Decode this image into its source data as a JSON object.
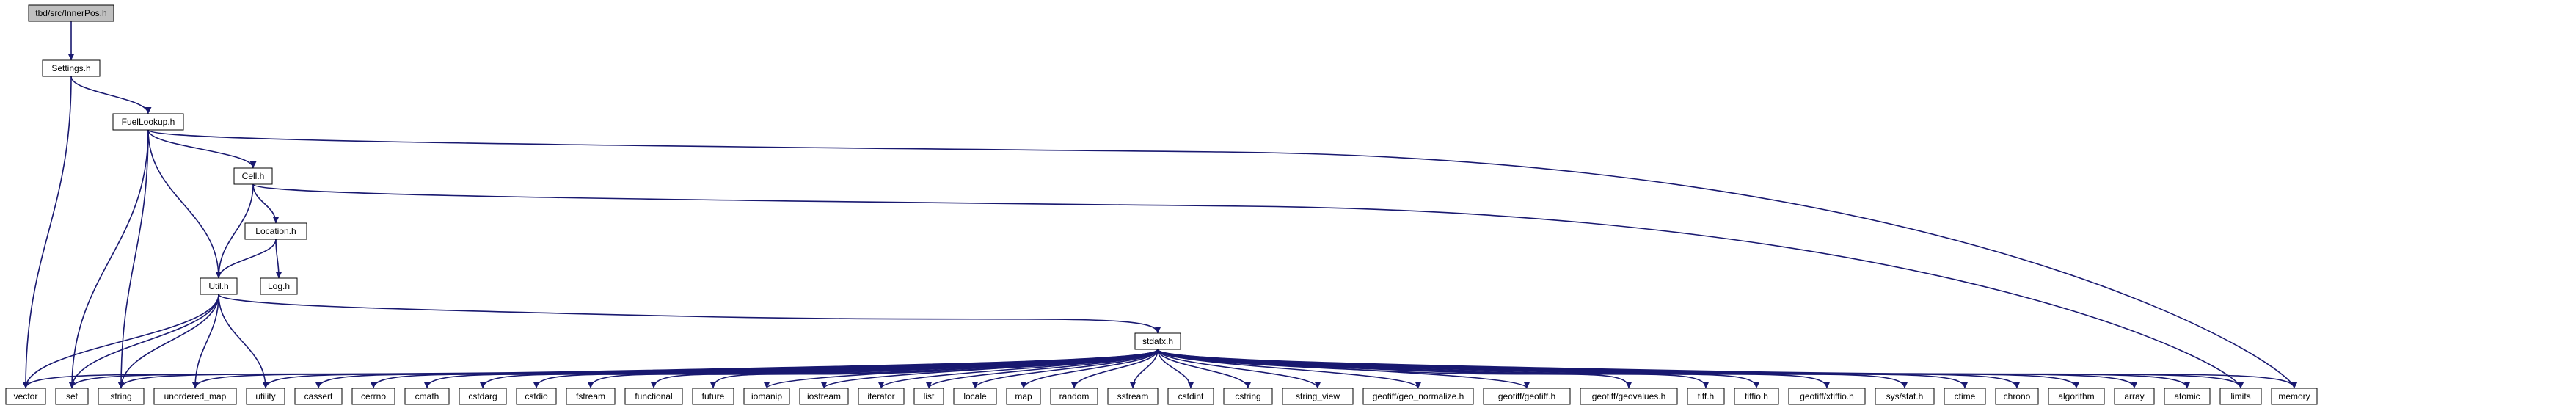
{
  "title": "tbd/src/InnerPos.h",
  "colors": {
    "edge": "#191970",
    "root_fill": "#bfbfbf",
    "node_fill": "#ffffff",
    "node_border": "#000000"
  },
  "nodes": [
    {
      "id": "innerpos",
      "label": "tbd/src/InnerPos.h"
    },
    {
      "id": "settings",
      "label": "Settings.h"
    },
    {
      "id": "fuellookup",
      "label": "FuelLookup.h"
    },
    {
      "id": "cell",
      "label": "Cell.h"
    },
    {
      "id": "location",
      "label": "Location.h"
    },
    {
      "id": "util",
      "label": "Util.h"
    },
    {
      "id": "log",
      "label": "Log.h"
    },
    {
      "id": "stdafx",
      "label": "stdafx.h"
    },
    {
      "id": "vector",
      "label": "vector"
    },
    {
      "id": "set",
      "label": "set"
    },
    {
      "id": "string",
      "label": "string"
    },
    {
      "id": "unordered_map",
      "label": "unordered_map"
    },
    {
      "id": "utility",
      "label": "utility"
    },
    {
      "id": "cassert",
      "label": "cassert"
    },
    {
      "id": "cerrno",
      "label": "cerrno"
    },
    {
      "id": "cmath",
      "label": "cmath"
    },
    {
      "id": "cstdarg",
      "label": "cstdarg"
    },
    {
      "id": "cstdio",
      "label": "cstdio"
    },
    {
      "id": "fstream",
      "label": "fstream"
    },
    {
      "id": "functional",
      "label": "functional"
    },
    {
      "id": "future",
      "label": "future"
    },
    {
      "id": "iomanip",
      "label": "iomanip"
    },
    {
      "id": "iostream",
      "label": "iostream"
    },
    {
      "id": "iterator",
      "label": "iterator"
    },
    {
      "id": "list",
      "label": "list"
    },
    {
      "id": "locale",
      "label": "locale"
    },
    {
      "id": "map",
      "label": "map"
    },
    {
      "id": "random",
      "label": "random"
    },
    {
      "id": "sstream",
      "label": "sstream"
    },
    {
      "id": "cstdint",
      "label": "cstdint"
    },
    {
      "id": "cstring",
      "label": "cstring"
    },
    {
      "id": "string_view",
      "label": "string_view"
    },
    {
      "id": "geo_normalize",
      "label": "geotiff/geo_normalize.h"
    },
    {
      "id": "geotiff",
      "label": "geotiff/geotiff.h"
    },
    {
      "id": "geovalues",
      "label": "geotiff/geovalues.h"
    },
    {
      "id": "tiff",
      "label": "tiff.h"
    },
    {
      "id": "tiffio",
      "label": "tiffio.h"
    },
    {
      "id": "xtiffio",
      "label": "geotiff/xtiffio.h"
    },
    {
      "id": "stat",
      "label": "sys/stat.h"
    },
    {
      "id": "ctime",
      "label": "ctime"
    },
    {
      "id": "chrono",
      "label": "chrono"
    },
    {
      "id": "algorithm",
      "label": "algorithm"
    },
    {
      "id": "array",
      "label": "array"
    },
    {
      "id": "atomic",
      "label": "atomic"
    },
    {
      "id": "limits",
      "label": "limits"
    },
    {
      "id": "memory",
      "label": "memory"
    }
  ],
  "edges": [
    [
      "innerpos",
      "settings"
    ],
    [
      "settings",
      "fuellookup"
    ],
    [
      "settings",
      "vector"
    ],
    [
      "fuellookup",
      "cell"
    ],
    [
      "fuellookup",
      "util"
    ],
    [
      "fuellookup",
      "set"
    ],
    [
      "fuellookup",
      "string"
    ],
    [
      "fuellookup",
      "memory"
    ],
    [
      "cell",
      "location"
    ],
    [
      "cell",
      "util"
    ],
    [
      "cell",
      "limits"
    ],
    [
      "location",
      "util"
    ],
    [
      "location",
      "log"
    ],
    [
      "util",
      "stdafx"
    ],
    [
      "util",
      "vector"
    ],
    [
      "util",
      "string"
    ],
    [
      "util",
      "unordered_map"
    ],
    [
      "util",
      "utility"
    ],
    [
      "util",
      "set"
    ],
    [
      "stdafx",
      "vector"
    ],
    [
      "stdafx",
      "set"
    ],
    [
      "stdafx",
      "string"
    ],
    [
      "stdafx",
      "unordered_map"
    ],
    [
      "stdafx",
      "utility"
    ],
    [
      "stdafx",
      "cassert"
    ],
    [
      "stdafx",
      "cerrno"
    ],
    [
      "stdafx",
      "cmath"
    ],
    [
      "stdafx",
      "cstdarg"
    ],
    [
      "stdafx",
      "cstdio"
    ],
    [
      "stdafx",
      "fstream"
    ],
    [
      "stdafx",
      "functional"
    ],
    [
      "stdafx",
      "future"
    ],
    [
      "stdafx",
      "iomanip"
    ],
    [
      "stdafx",
      "iostream"
    ],
    [
      "stdafx",
      "iterator"
    ],
    [
      "stdafx",
      "list"
    ],
    [
      "stdafx",
      "locale"
    ],
    [
      "stdafx",
      "map"
    ],
    [
      "stdafx",
      "random"
    ],
    [
      "stdafx",
      "sstream"
    ],
    [
      "stdafx",
      "cstdint"
    ],
    [
      "stdafx",
      "cstring"
    ],
    [
      "stdafx",
      "string_view"
    ],
    [
      "stdafx",
      "geo_normalize"
    ],
    [
      "stdafx",
      "geotiff"
    ],
    [
      "stdafx",
      "geovalues"
    ],
    [
      "stdafx",
      "tiff"
    ],
    [
      "stdafx",
      "tiffio"
    ],
    [
      "stdafx",
      "xtiffio"
    ],
    [
      "stdafx",
      "stat"
    ],
    [
      "stdafx",
      "ctime"
    ],
    [
      "stdafx",
      "chrono"
    ],
    [
      "stdafx",
      "algorithm"
    ],
    [
      "stdafx",
      "array"
    ],
    [
      "stdafx",
      "atomic"
    ],
    [
      "stdafx",
      "limits"
    ],
    [
      "stdafx",
      "memory"
    ]
  ]
}
